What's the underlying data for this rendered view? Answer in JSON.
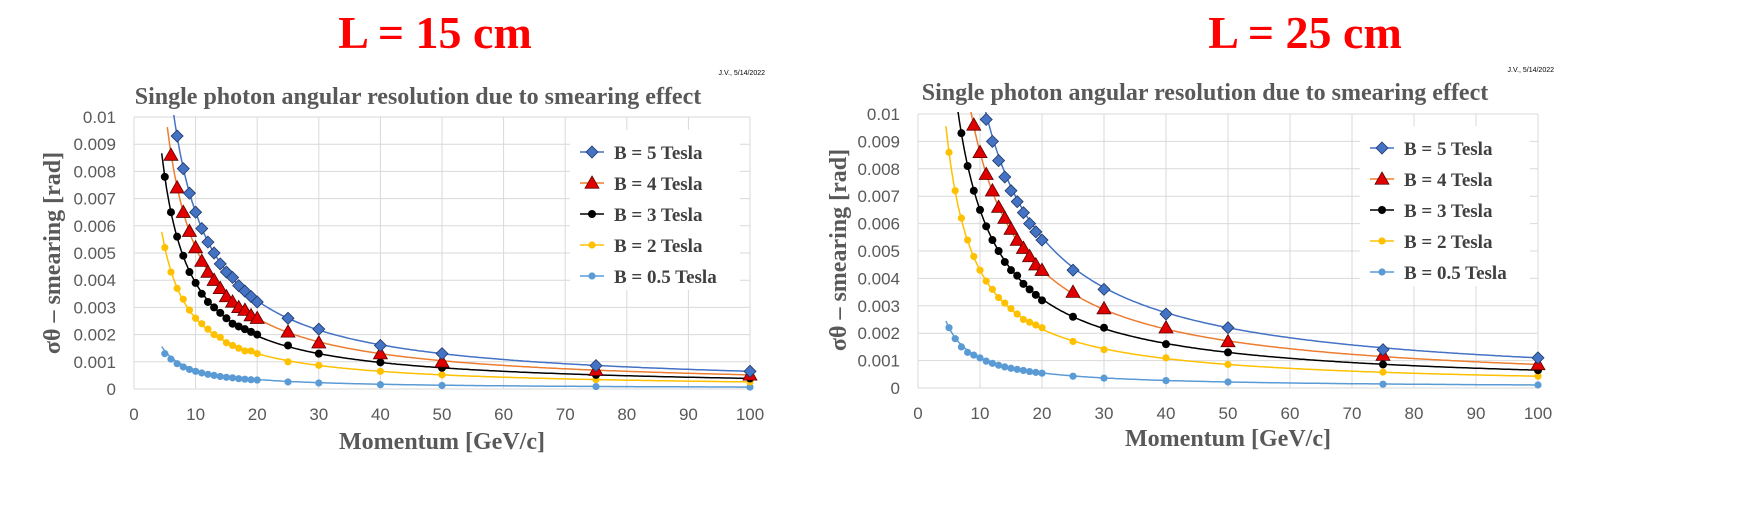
{
  "chart_data": [
    {
      "type": "scatter",
      "headline": "L = 15 cm",
      "credit": "J.V., 5/14/2022",
      "title": "Single photon angular resolution due to smearing effect",
      "xlabel": "Momentum [GeV/c]",
      "ylabel": "σθ – smearing [rad]",
      "xlim": [
        0,
        100
      ],
      "ylim": [
        0,
        0.01
      ],
      "xticks": [
        0,
        10,
        20,
        30,
        40,
        50,
        60,
        70,
        80,
        90,
        100
      ],
      "xtick_labels": [
        "0",
        "10",
        "20",
        "30",
        "40",
        "50",
        "60",
        "70",
        "80",
        "90",
        "100"
      ],
      "yticks": [
        0,
        0.001,
        0.002,
        0.003,
        0.004,
        0.005,
        0.006,
        0.007,
        0.008,
        0.009,
        0.01
      ],
      "ytick_labels": [
        "0",
        "0.001",
        "0.002",
        "0.003",
        "0.004",
        "0.005",
        "0.006",
        "0.007",
        "0.008",
        "0.009",
        "0.01"
      ],
      "legend_position": "top-right",
      "series": [
        {
          "name": "B = 5 Tesla",
          "color": "#4472c4",
          "marker": "diamond",
          "x": [
            7,
            8,
            9,
            10,
            11,
            12,
            13,
            14,
            15,
            16,
            17,
            18,
            19,
            20,
            25,
            30,
            40,
            50,
            75,
            100
          ],
          "y": [
            0.0093,
            0.0081,
            0.0072,
            0.0065,
            0.0059,
            0.0054,
            0.005,
            0.0046,
            0.0043,
            0.0041,
            0.0038,
            0.0036,
            0.0034,
            0.0032,
            0.0026,
            0.0022,
            0.0016,
            0.0013,
            0.00086,
            0.00065
          ]
        },
        {
          "name": "B = 4 Tesla",
          "color": "#ed7d31",
          "marker": "triangle",
          "x": [
            6,
            7,
            8,
            9,
            10,
            11,
            12,
            13,
            14,
            15,
            16,
            17,
            18,
            19,
            20,
            25,
            30,
            40,
            50,
            75,
            100
          ],
          "y": [
            0.0086,
            0.0074,
            0.0065,
            0.0058,
            0.0052,
            0.0047,
            0.0043,
            0.004,
            0.0037,
            0.0034,
            0.0032,
            0.003,
            0.0029,
            0.0027,
            0.0026,
            0.0021,
            0.0017,
            0.0013,
            0.001,
            0.00069,
            0.00052
          ]
        },
        {
          "name": "B = 3 Tesla",
          "color": "#000000",
          "marker": "circle",
          "x": [
            5,
            6,
            7,
            8,
            9,
            10,
            11,
            12,
            13,
            14,
            15,
            16,
            17,
            18,
            19,
            20,
            25,
            30,
            40,
            50,
            75,
            100
          ],
          "y": [
            0.0078,
            0.0065,
            0.0056,
            0.0049,
            0.0043,
            0.0039,
            0.0035,
            0.0032,
            0.003,
            0.0028,
            0.0026,
            0.0024,
            0.0023,
            0.0022,
            0.0021,
            0.002,
            0.0016,
            0.0013,
            0.00098,
            0.00078,
            0.00052,
            0.00039
          ]
        },
        {
          "name": "B = 2 Tesla",
          "color": "#ffc000",
          "marker": "circle",
          "x": [
            5,
            6,
            7,
            8,
            9,
            10,
            11,
            12,
            13,
            14,
            15,
            16,
            17,
            18,
            19,
            20,
            25,
            30,
            40,
            50,
            75,
            100
          ],
          "y": [
            0.0052,
            0.0043,
            0.0037,
            0.0033,
            0.0029,
            0.0026,
            0.0024,
            0.0022,
            0.002,
            0.0019,
            0.0017,
            0.0016,
            0.0015,
            0.0014,
            0.0014,
            0.0013,
            0.001,
            0.00087,
            0.00065,
            0.00052,
            0.00035,
            0.00026
          ]
        },
        {
          "name": "B = 0.5 Tesla",
          "color": "#5b9bd5",
          "marker": "circle",
          "x": [
            5,
            6,
            7,
            8,
            9,
            10,
            11,
            12,
            13,
            14,
            15,
            16,
            17,
            18,
            19,
            20,
            25,
            30,
            40,
            50,
            75,
            100
          ],
          "y": [
            0.0013,
            0.0011,
            0.00093,
            0.00081,
            0.00072,
            0.00065,
            0.00059,
            0.00054,
            0.0005,
            0.00046,
            0.00043,
            0.00041,
            0.00038,
            0.00036,
            0.00034,
            0.00033,
            0.00026,
            0.00022,
            0.00016,
            0.00013,
            9e-05,
            7e-05
          ]
        }
      ]
    },
    {
      "type": "scatter",
      "headline": "L = 25 cm",
      "credit": "J.V., 5/14/2022",
      "title": "Single photon angular resolution due to smearing effect",
      "xlabel": "Momentum [GeV/c]",
      "ylabel": "σθ – smearing [rad]",
      "xlim": [
        0,
        100
      ],
      "ylim": [
        0,
        0.01
      ],
      "xticks": [
        0,
        10,
        20,
        30,
        40,
        50,
        60,
        70,
        80,
        90,
        100
      ],
      "xtick_labels": [
        "0",
        "10",
        "20",
        "30",
        "40",
        "50",
        "60",
        "70",
        "80",
        "90",
        "100"
      ],
      "yticks": [
        0,
        0.001,
        0.002,
        0.003,
        0.004,
        0.005,
        0.006,
        0.007,
        0.008,
        0.009,
        0.01
      ],
      "ytick_labels": [
        "0",
        "0.001",
        "0.002",
        "0.003",
        "0.004",
        "0.005",
        "0.006",
        "0.007",
        "0.008",
        "0.009",
        "0.01"
      ],
      "legend_position": "top-right",
      "series": [
        {
          "name": "B = 5 Tesla",
          "color": "#4472c4",
          "marker": "diamond",
          "x": [
            11,
            12,
            13,
            14,
            15,
            16,
            17,
            18,
            19,
            20,
            25,
            30,
            40,
            50,
            75,
            100
          ],
          "y": [
            0.0098,
            0.009,
            0.0083,
            0.0077,
            0.0072,
            0.0068,
            0.0064,
            0.006,
            0.0057,
            0.0054,
            0.0043,
            0.0036,
            0.0027,
            0.0022,
            0.0014,
            0.0011
          ]
        },
        {
          "name": "B = 4 Tesla",
          "color": "#ed7d31",
          "marker": "triangle",
          "x": [
            9,
            10,
            11,
            12,
            13,
            14,
            15,
            16,
            17,
            18,
            19,
            20,
            25,
            30,
            40,
            50,
            75,
            100
          ],
          "y": [
            0.0096,
            0.0086,
            0.0078,
            0.0072,
            0.0066,
            0.0062,
            0.0058,
            0.0054,
            0.0051,
            0.0048,
            0.0045,
            0.0043,
            0.0035,
            0.0029,
            0.0022,
            0.0017,
            0.0012,
            0.00086
          ]
        },
        {
          "name": "B = 3 Tesla",
          "color": "#000000",
          "marker": "circle",
          "x": [
            7,
            8,
            9,
            10,
            11,
            12,
            13,
            14,
            15,
            16,
            17,
            18,
            19,
            20,
            25,
            30,
            40,
            50,
            75,
            100
          ],
          "y": [
            0.0093,
            0.0081,
            0.0072,
            0.0065,
            0.0059,
            0.0054,
            0.005,
            0.0046,
            0.0043,
            0.0041,
            0.0038,
            0.0036,
            0.0034,
            0.0032,
            0.0026,
            0.0022,
            0.0016,
            0.0013,
            0.00086,
            0.00065
          ]
        },
        {
          "name": "B = 2 Tesla",
          "color": "#ffc000",
          "marker": "circle",
          "x": [
            5,
            6,
            7,
            8,
            9,
            10,
            11,
            12,
            13,
            14,
            15,
            16,
            17,
            18,
            19,
            20,
            25,
            30,
            40,
            50,
            75,
            100
          ],
          "y": [
            0.0086,
            0.0072,
            0.0062,
            0.0054,
            0.0048,
            0.0043,
            0.0039,
            0.0036,
            0.0033,
            0.0031,
            0.0029,
            0.0027,
            0.0025,
            0.0024,
            0.0023,
            0.0022,
            0.0017,
            0.0014,
            0.0011,
            0.00086,
            0.00058,
            0.00043
          ]
        },
        {
          "name": "B = 0.5 Tesla",
          "color": "#5b9bd5",
          "marker": "circle",
          "x": [
            5,
            6,
            7,
            8,
            9,
            10,
            11,
            12,
            13,
            14,
            15,
            16,
            17,
            18,
            19,
            20,
            25,
            30,
            40,
            50,
            75,
            100
          ],
          "y": [
            0.0022,
            0.0018,
            0.0015,
            0.0013,
            0.0012,
            0.0011,
            0.00098,
            0.0009,
            0.00083,
            0.00077,
            0.00072,
            0.00068,
            0.00064,
            0.0006,
            0.00057,
            0.00054,
            0.00043,
            0.00036,
            0.00027,
            0.00022,
            0.00014,
            0.00011
          ]
        }
      ]
    }
  ]
}
